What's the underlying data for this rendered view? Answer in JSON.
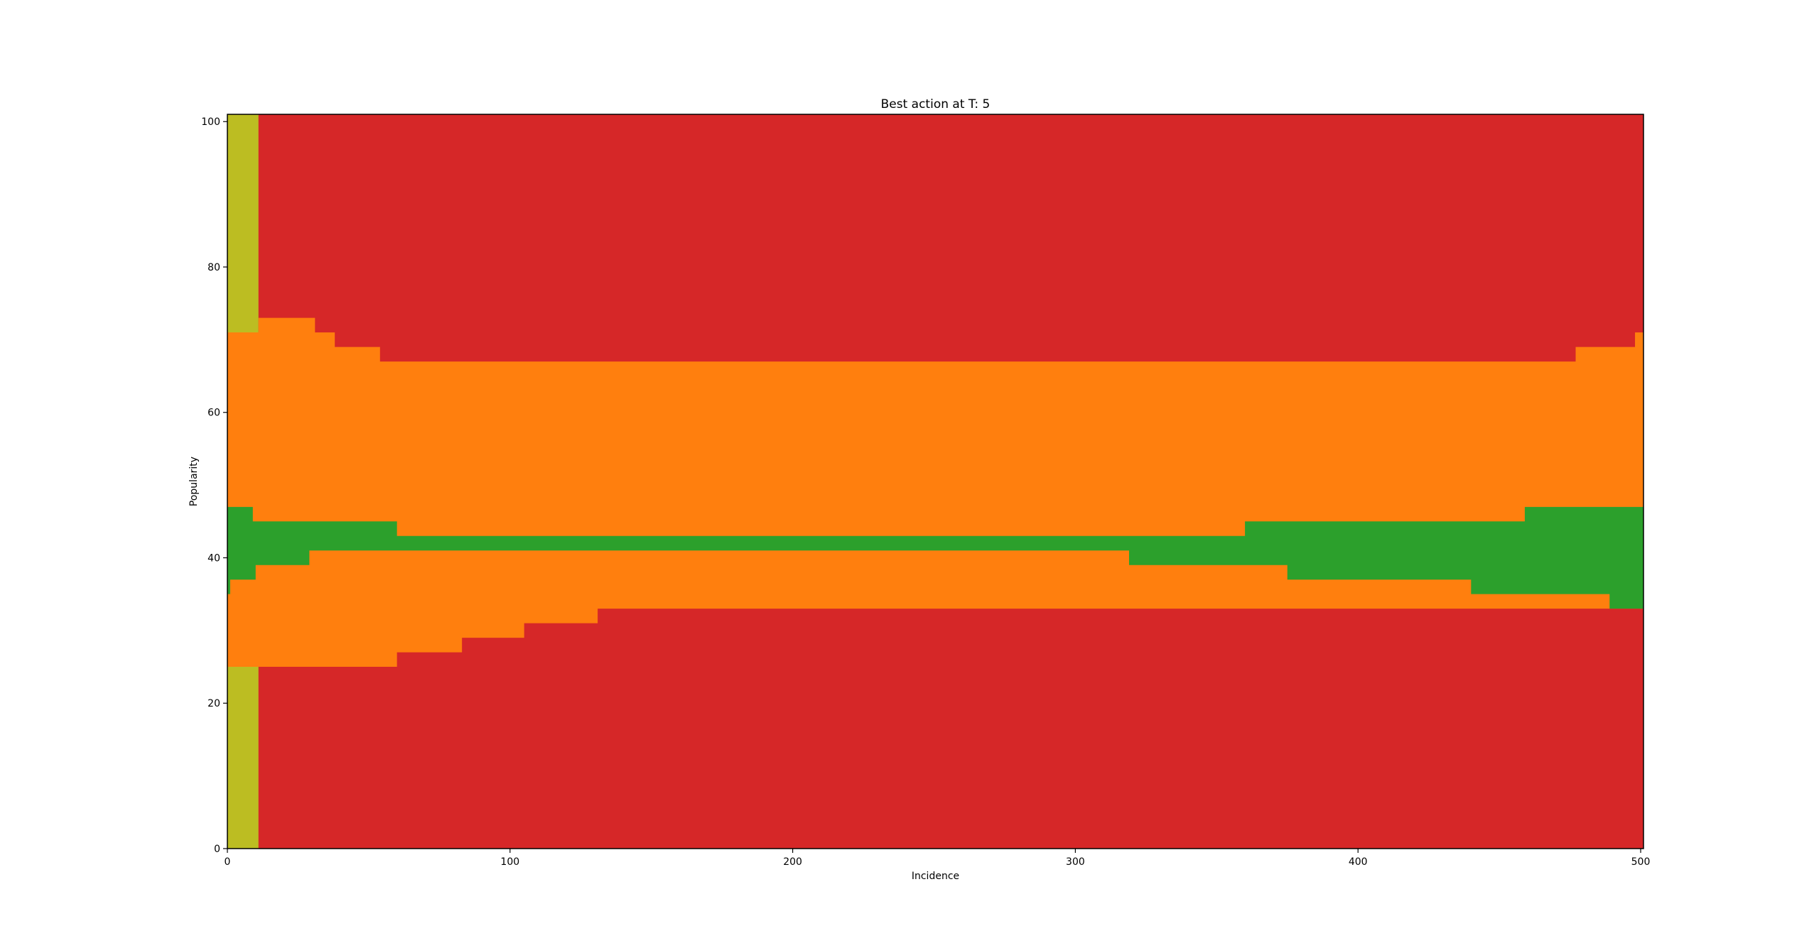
{
  "chart_data": {
    "type": "heatmap",
    "title": "Best action at T: 5",
    "xlabel": "Incidence",
    "ylabel": "Popularity",
    "xlim": [
      0,
      501
    ],
    "ylim": [
      0,
      101
    ],
    "xticks": [
      0,
      100,
      200,
      300,
      400,
      500
    ],
    "yticks": [
      0,
      20,
      40,
      60,
      80,
      100
    ],
    "xtick_labels": [
      "0",
      "100",
      "200",
      "300",
      "400",
      "500"
    ],
    "ytick_labels": [
      "0",
      "20",
      "40",
      "60",
      "80",
      "100"
    ],
    "grid": false,
    "legend": "none",
    "colors": {
      "red": "#d62728",
      "orange": "#ff7f0e",
      "green": "#2ca02c",
      "olive": "#bcbd22"
    },
    "regions": [
      {
        "color": "red",
        "points": [
          [
            0,
            0
          ],
          [
            501,
            0
          ],
          [
            501,
            101
          ],
          [
            0,
            101
          ]
        ]
      },
      {
        "color": "olive",
        "points": [
          [
            0,
            0
          ],
          [
            11,
            0
          ],
          [
            11,
            101
          ],
          [
            0,
            101
          ]
        ]
      },
      {
        "color": "orange",
        "points": [
          [
            0,
            25
          ],
          [
            11,
            25
          ],
          [
            11,
            25
          ],
          [
            60,
            25
          ],
          [
            60,
            27
          ],
          [
            83,
            27
          ],
          [
            83,
            29
          ],
          [
            105,
            29
          ],
          [
            105,
            31
          ],
          [
            131,
            31
          ],
          [
            131,
            33
          ],
          [
            501,
            33
          ],
          [
            501,
            71
          ],
          [
            498,
            71
          ],
          [
            498,
            69
          ],
          [
            477,
            69
          ],
          [
            477,
            67
          ],
          [
            54,
            67
          ],
          [
            54,
            69
          ],
          [
            38,
            69
          ],
          [
            38,
            71
          ],
          [
            31,
            71
          ],
          [
            31,
            73
          ],
          [
            11,
            73
          ],
          [
            11,
            71
          ],
          [
            0,
            71
          ]
        ]
      },
      {
        "color": "green",
        "points": [
          [
            0,
            35
          ],
          [
            1,
            35
          ],
          [
            1,
            37
          ],
          [
            10,
            37
          ],
          [
            10,
            39
          ],
          [
            29,
            39
          ],
          [
            29,
            41
          ],
          [
            319,
            41
          ],
          [
            319,
            39
          ],
          [
            375,
            39
          ],
          [
            375,
            37
          ],
          [
            440,
            37
          ],
          [
            440,
            35
          ],
          [
            489,
            35
          ],
          [
            489,
            33
          ],
          [
            501,
            33
          ],
          [
            501,
            47
          ],
          [
            459,
            47
          ],
          [
            459,
            45
          ],
          [
            360,
            45
          ],
          [
            360,
            43
          ],
          [
            60,
            43
          ],
          [
            60,
            45
          ],
          [
            9,
            45
          ],
          [
            9,
            47
          ],
          [
            0,
            47
          ]
        ]
      }
    ]
  }
}
